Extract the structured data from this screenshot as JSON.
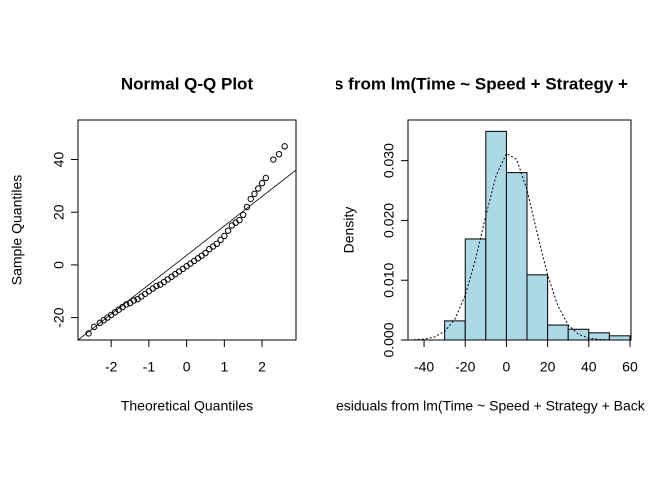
{
  "chart_data": [
    {
      "type": "scatter",
      "title": "Normal Q-Q Plot",
      "x_label": "Theoretical Quantiles",
      "y_label": "Sample Quantiles",
      "x": [
        -2.6,
        -2.45,
        -2.3,
        -2.2,
        -2.1,
        -2.0,
        -1.9,
        -1.8,
        -1.7,
        -1.6,
        -1.5,
        -1.4,
        -1.3,
        -1.2,
        -1.1,
        -1.0,
        -0.9,
        -0.8,
        -0.7,
        -0.6,
        -0.5,
        -0.4,
        -0.3,
        -0.2,
        -0.1,
        0,
        0.1,
        0.2,
        0.3,
        0.4,
        0.5,
        0.6,
        0.7,
        0.8,
        0.9,
        1.0,
        1.1,
        1.2,
        1.3,
        1.4,
        1.5,
        1.6,
        1.7,
        1.8,
        1.9,
        2.0,
        2.1,
        2.3,
        2.45,
        2.6
      ],
      "values": [
        -26,
        -23.5,
        -22,
        -21,
        -20,
        -19,
        -18,
        -17,
        -16,
        -15,
        -14.5,
        -13.5,
        -13,
        -12,
        -11,
        -10,
        -9,
        -8,
        -7.5,
        -6.5,
        -5.5,
        -4.5,
        -3.5,
        -2.5,
        -1.5,
        -0.5,
        0.5,
        1.5,
        2.5,
        3.5,
        4.5,
        6,
        7,
        8,
        9.5,
        11,
        13,
        15,
        16,
        17,
        19,
        22,
        25,
        27,
        29,
        31,
        33,
        40,
        42,
        45
      ],
      "reference_line": {
        "x": [
          -2.88,
          2.9
        ],
        "y": [
          -28.5,
          36
        ]
      },
      "xlim": [
        -2.88,
        2.9
      ],
      "ylim": [
        -28.5,
        55
      ],
      "xticks": [
        -2,
        -1,
        0,
        1,
        2
      ],
      "yticks": [
        -20,
        0,
        20,
        40
      ]
    },
    {
      "type": "histogram",
      "title": "s from lm(Time ~ Speed + Strategy +",
      "x_label": "esiduals from lm(Time ~ Speed + Strategy + Back",
      "y_label": "Density",
      "bins": [
        -30,
        -20,
        -10,
        0,
        10,
        20,
        30,
        40,
        50,
        60
      ],
      "values": [
        0.0032,
        0.0169,
        0.0349,
        0.028,
        0.0109,
        0.0025,
        0.0018,
        0.0012,
        0.0007
      ],
      "color": "#add8e6",
      "density": {
        "x": [
          -45,
          -40,
          -35,
          -30,
          -25,
          -20,
          -15,
          -10,
          -5,
          0,
          5,
          10,
          15,
          20,
          25,
          30,
          35,
          40,
          45,
          50
        ],
        "y": [
          4e-05,
          0.00015,
          0.0005,
          0.00144,
          0.0035,
          0.0075,
          0.0135,
          0.0208,
          0.0275,
          0.0312,
          0.0302,
          0.0251,
          0.0178,
          0.0109,
          0.0057,
          0.0025,
          0.00097,
          0.0003,
          9e-05,
          2e-05
        ]
      },
      "xlim": [
        -47.8,
        60.5
      ],
      "ylim": [
        0,
        0.0368
      ],
      "xticks": [
        -40,
        -20,
        0,
        20,
        40,
        60
      ],
      "yticks": [
        {
          "value": 0,
          "label": "0.000"
        },
        {
          "value": 0.01,
          "label": "0.010"
        },
        {
          "value": 0.02,
          "label": "0.020"
        },
        {
          "value": 0.03,
          "label": "0.030"
        }
      ]
    }
  ]
}
